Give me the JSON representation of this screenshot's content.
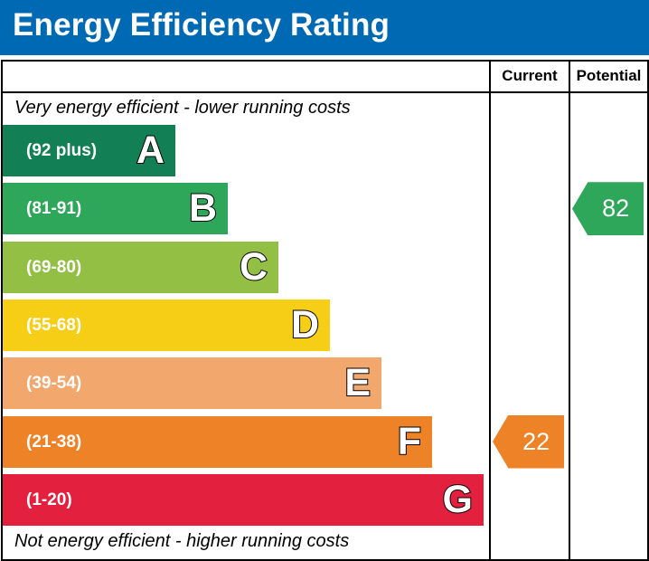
{
  "title": "Energy Efficiency Rating",
  "columns": {
    "current": "Current",
    "potential": "Potential"
  },
  "top_note": "Very energy efficient - lower running costs",
  "bottom_note": "Not energy efficient - higher running costs",
  "chart_data": {
    "type": "bar",
    "categories": [
      "A",
      "B",
      "C",
      "D",
      "E",
      "F",
      "G"
    ],
    "bands": [
      {
        "letter": "A",
        "range": "(92 plus)",
        "color": "#127f54"
      },
      {
        "letter": "B",
        "range": "(81-91)",
        "color": "#2ea75a"
      },
      {
        "letter": "C",
        "range": "(69-80)",
        "color": "#92bf44"
      },
      {
        "letter": "D",
        "range": "(55-68)",
        "color": "#f6ce15"
      },
      {
        "letter": "E",
        "range": "(39-54)",
        "color": "#f2a86c"
      },
      {
        "letter": "F",
        "range": "(21-38)",
        "color": "#ed8226"
      },
      {
        "letter": "G",
        "range": "(1-20)",
        "color": "#e3203d"
      }
    ],
    "current": {
      "value": 22,
      "band": "F",
      "color": "#ed8226"
    },
    "potential": {
      "value": 82,
      "band": "B",
      "color": "#2ea75a"
    }
  }
}
